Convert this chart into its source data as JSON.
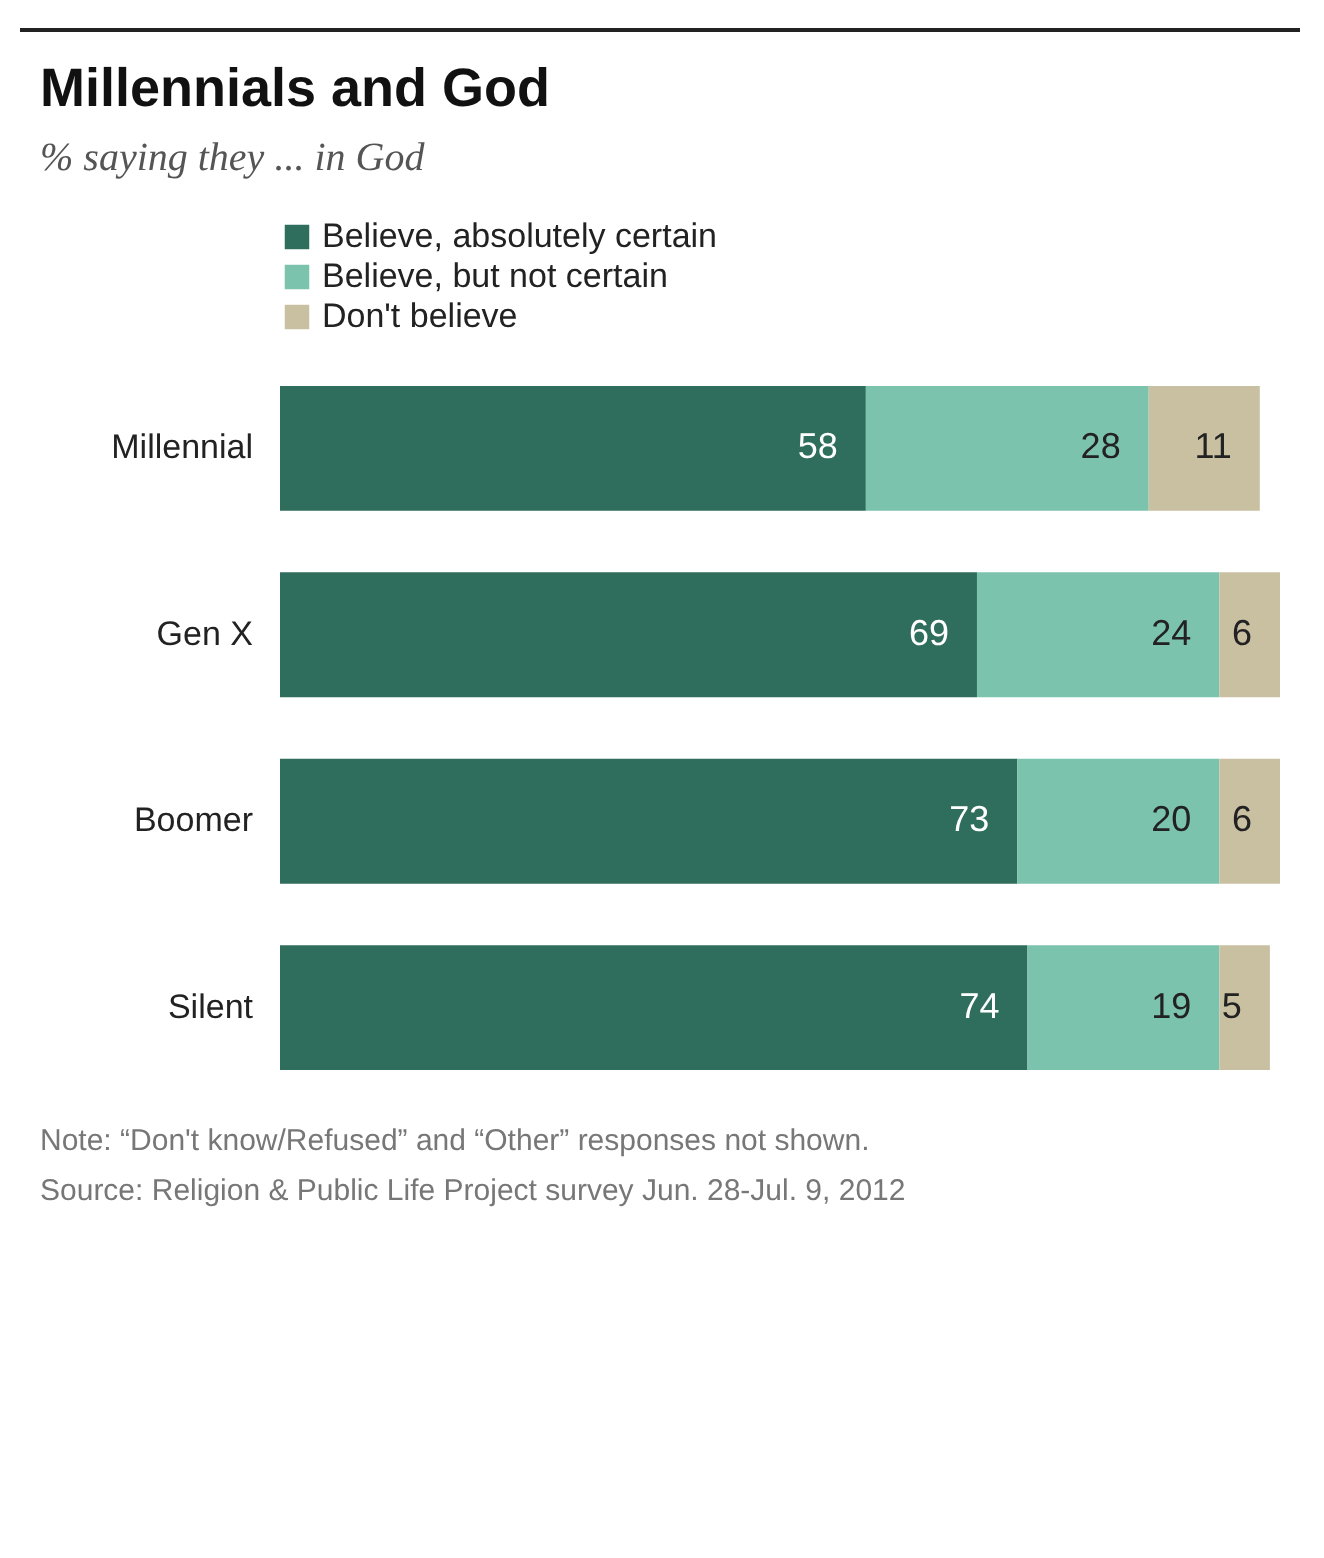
{
  "chart_data": {
    "type": "bar",
    "title": "Millennials and God",
    "subtitle": "% saying they ... in God",
    "categories": [
      "Millennial",
      "Gen X",
      "Boomer",
      "Silent"
    ],
    "orientation": "horizontal",
    "stacked": true,
    "data_labels": true,
    "legend": "top",
    "series": [
      {
        "name": "Believe, absolutely certain",
        "color": "#2f6e5d",
        "values": [
          58,
          69,
          73,
          74
        ]
      },
      {
        "name": "Believe, but not certain",
        "color": "#7cc3ae",
        "values": [
          28,
          24,
          20,
          19
        ]
      },
      {
        "name": "Don't believe",
        "color": "#c9c0a2",
        "values": [
          11,
          6,
          6,
          5
        ]
      }
    ],
    "annotations": [
      "Note: “Don't know/Refused” and “Other” responses not shown.",
      "Source: Religion & Public Life Project survey Jun. 28-Jul. 9, 2012"
    ]
  }
}
